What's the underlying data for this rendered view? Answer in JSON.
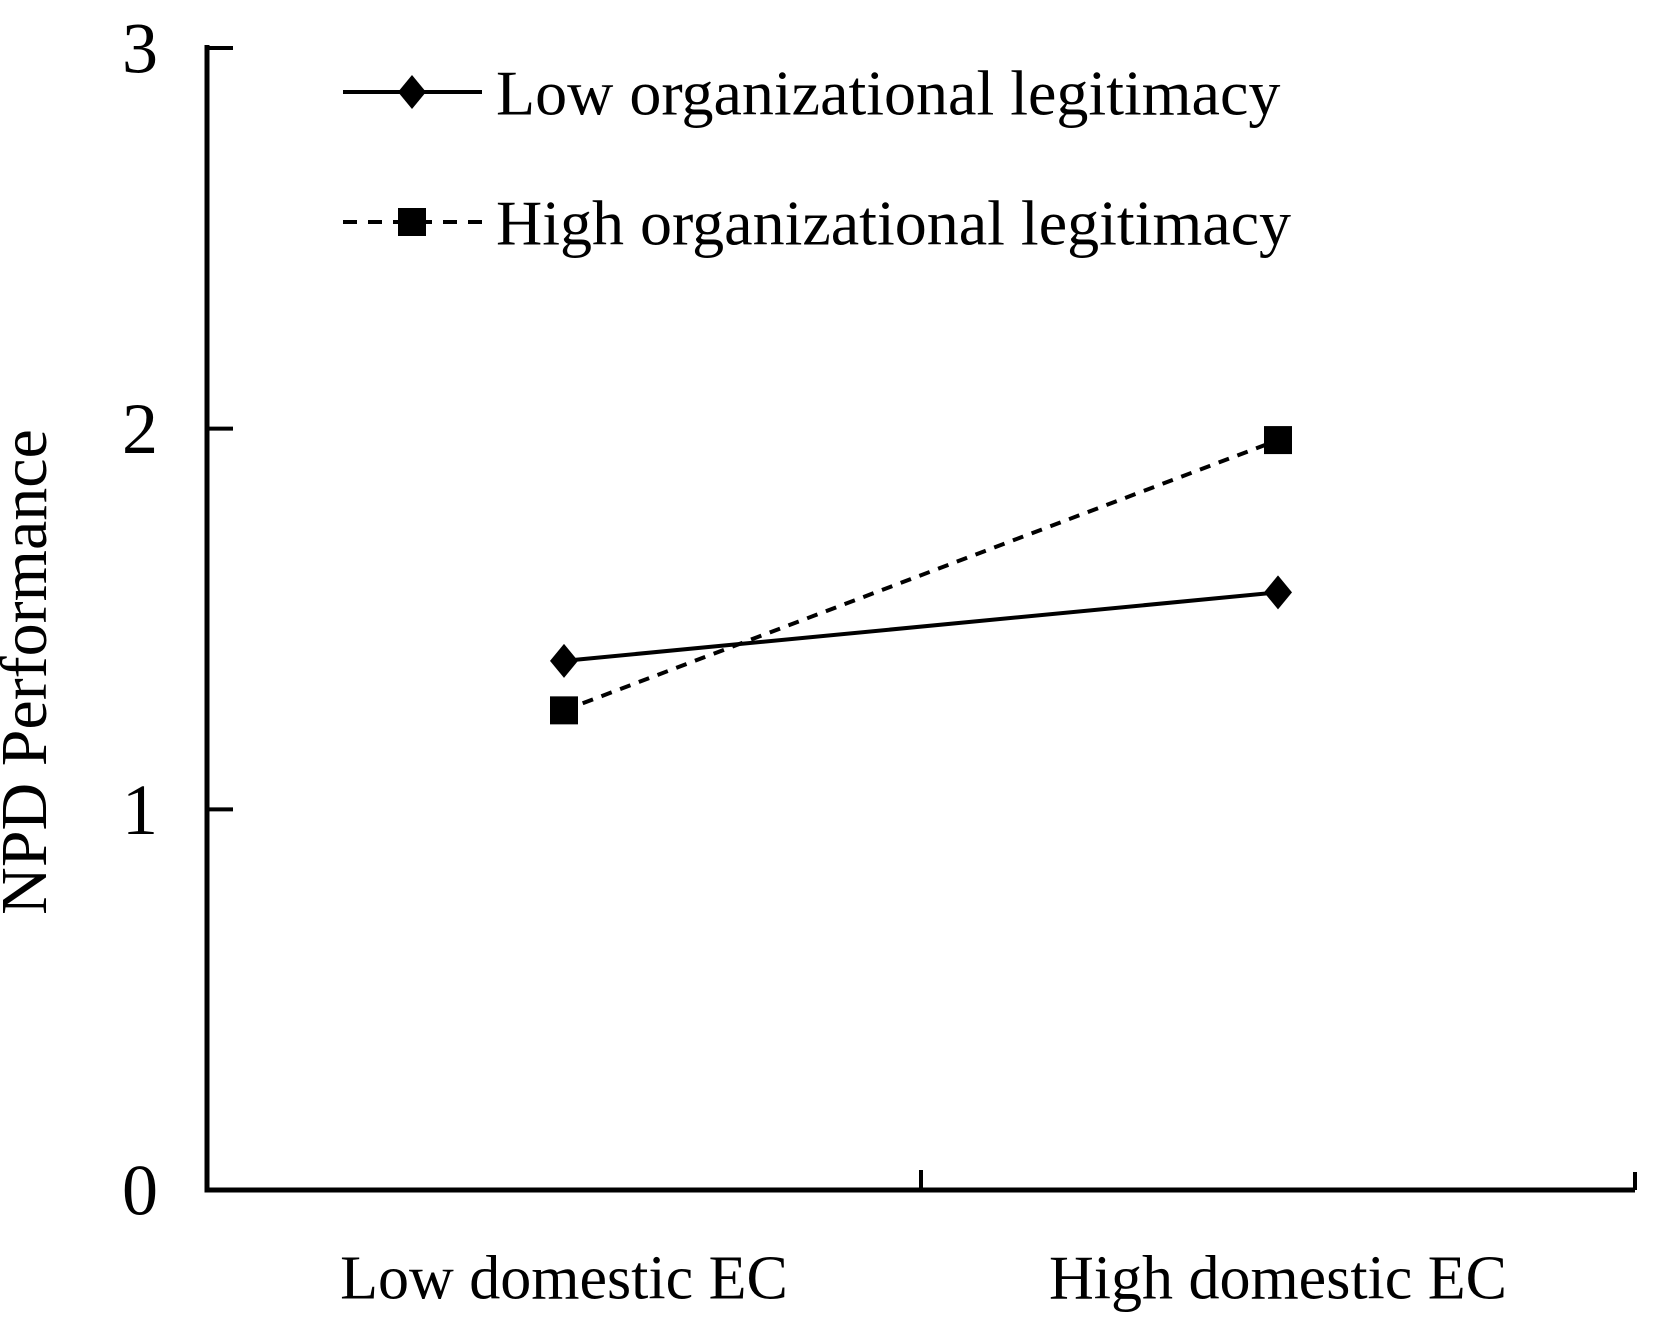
{
  "chart_data": {
    "type": "line",
    "title": "",
    "categories": [
      "Low domestic EC",
      "High domestic EC"
    ],
    "series": [
      {
        "name": "Low organizational legitimacy",
        "values": [
          1.39,
          1.57
        ],
        "marker": "diamond",
        "line_style": "solid",
        "color": "#000000"
      },
      {
        "name": "High organizational legitimacy",
        "values": [
          1.26,
          1.97
        ],
        "marker": "square",
        "line_style": "dashed",
        "color": "#000000"
      }
    ],
    "xlabel": "",
    "ylabel": "NPD Performance",
    "ylim": [
      0,
      3
    ],
    "yticks": [
      "0",
      "1",
      "2",
      "3"
    ],
    "grid": false,
    "legend_position": "top-left",
    "background": "#ffffff",
    "foreground": "#000000"
  }
}
